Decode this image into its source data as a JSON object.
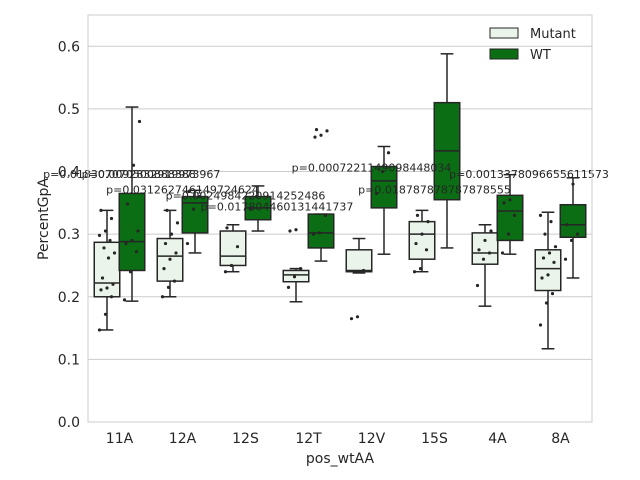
{
  "chart_data": {
    "type": "boxplot",
    "xlabel": "pos_wtAA",
    "ylabel": "PercentGpA",
    "ylim": [
      0.0,
      0.65
    ],
    "yticks": [
      0.0,
      0.1,
      0.2,
      0.3,
      0.4,
      0.5,
      0.6
    ],
    "ytick_labels": [
      "0.0",
      "0.1",
      "0.2",
      "0.3",
      "0.4",
      "0.5",
      "0.6"
    ],
    "grid": true,
    "legend_position": "top-right",
    "categories": [
      "11A",
      "12A",
      "12S",
      "12T",
      "12V",
      "15S",
      "4A",
      "8A"
    ],
    "colors": {
      "Mutant": "#eaf4ea",
      "WT": "#0b6e14",
      "edge": "#262626",
      "grid": "#cccccc"
    },
    "series": [
      {
        "name": "Mutant",
        "boxes": [
          {
            "whislo": 0.147,
            "q1": 0.2,
            "med": 0.222,
            "q3": 0.287,
            "whishi": 0.338,
            "points": [
              0.147,
              0.172,
              0.2,
              0.211,
              0.214,
              0.22,
              0.23,
              0.262,
              0.27,
              0.278,
              0.29,
              0.298,
              0.305,
              0.325,
              0.338
            ]
          },
          {
            "whislo": 0.2,
            "q1": 0.225,
            "med": 0.265,
            "q3": 0.293,
            "whishi": 0.338,
            "points": [
              0.2,
              0.215,
              0.225,
              0.245,
              0.26,
              0.27,
              0.285,
              0.3,
              0.318,
              0.338
            ]
          },
          {
            "whislo": 0.24,
            "q1": 0.25,
            "med": 0.265,
            "q3": 0.305,
            "whishi": 0.315,
            "points": [
              0.24,
              0.25,
              0.28,
              0.31
            ]
          },
          {
            "whislo": 0.192,
            "q1": 0.224,
            "med": 0.235,
            "q3": 0.242,
            "whishi": 0.245,
            "points": [
              0.215,
              0.232,
              0.245,
              0.305,
              0.307
            ]
          },
          {
            "whislo": 0.238,
            "q1": 0.24,
            "med": 0.242,
            "q3": 0.275,
            "whishi": 0.293,
            "points": [
              0.165,
              0.168,
              0.242
            ]
          },
          {
            "whislo": 0.24,
            "q1": 0.26,
            "med": 0.3,
            "q3": 0.32,
            "whishi": 0.338,
            "points": [
              0.24,
              0.245,
              0.275,
              0.285,
              0.3,
              0.32,
              0.33
            ]
          },
          {
            "whislo": 0.185,
            "q1": 0.252,
            "med": 0.27,
            "q3": 0.302,
            "whishi": 0.315,
            "points": [
              0.218,
              0.26,
              0.27,
              0.275,
              0.29,
              0.305
            ]
          },
          {
            "whislo": 0.117,
            "q1": 0.21,
            "med": 0.245,
            "q3": 0.275,
            "whishi": 0.335,
            "points": [
              0.155,
              0.19,
              0.205,
              0.23,
              0.235,
              0.255,
              0.262,
              0.27,
              0.28,
              0.3,
              0.32,
              0.33
            ]
          }
        ]
      },
      {
        "name": "WT",
        "boxes": [
          {
            "whislo": 0.193,
            "q1": 0.242,
            "med": 0.288,
            "q3": 0.365,
            "whishi": 0.503,
            "points": [
              0.195,
              0.24,
              0.272,
              0.285,
              0.29,
              0.305,
              0.348,
              0.41,
              0.48
            ]
          },
          {
            "whislo": 0.27,
            "q1": 0.302,
            "med": 0.35,
            "q3": 0.36,
            "whishi": 0.37,
            "points": [
              0.285,
              0.34,
              0.36,
              0.368
            ]
          },
          {
            "whislo": 0.305,
            "q1": 0.323,
            "med": 0.342,
            "q3": 0.36,
            "whishi": 0.377,
            "points": [
              0.34,
              0.36
            ]
          },
          {
            "whislo": 0.257,
            "q1": 0.278,
            "med": 0.302,
            "q3": 0.332,
            "whishi": 0.332,
            "points": [
              0.3,
              0.302,
              0.33,
              0.455,
              0.458,
              0.465,
              0.467
            ]
          },
          {
            "whislo": 0.268,
            "q1": 0.342,
            "med": 0.385,
            "q3": 0.408,
            "whishi": 0.44,
            "points": [
              0.365,
              0.4,
              0.43
            ]
          },
          {
            "whislo": 0.278,
            "q1": 0.355,
            "med": 0.433,
            "q3": 0.51,
            "whishi": 0.588,
            "points": []
          },
          {
            "whislo": 0.268,
            "q1": 0.29,
            "med": 0.337,
            "q3": 0.362,
            "whishi": 0.395,
            "points": [
              0.27,
              0.3,
              0.33,
              0.35,
              0.355
            ]
          },
          {
            "whislo": 0.23,
            "q1": 0.295,
            "med": 0.315,
            "q3": 0.347,
            "whishi": 0.39,
            "points": [
              0.26,
              0.29,
              0.3,
              0.315,
              0.38
            ]
          }
        ]
      }
    ],
    "annotations": [
      {
        "text": "p=0.018307070500888388",
        "x": "11A",
        "y": 0.39
      },
      {
        "text": "p=0.0092832919973967",
        "x": "11A-12A",
        "y": 0.39
      },
      {
        "text": "p=0.031262746149724624",
        "x": "12A",
        "y": 0.365
      },
      {
        "text": "p=0.0024984220914252486",
        "x": "12S",
        "y": 0.355
      },
      {
        "text": "p=0.017804460131441737",
        "x": "12S-12T",
        "y": 0.338
      },
      {
        "text": "p=0.0007221149098448034",
        "x": "12V",
        "y": 0.4
      },
      {
        "text": "p=0.018787878787878555",
        "x": "15S",
        "y": 0.365
      },
      {
        "text": "p=0.0013378096655611573",
        "x": "4A-8A",
        "y": 0.39
      }
    ]
  }
}
